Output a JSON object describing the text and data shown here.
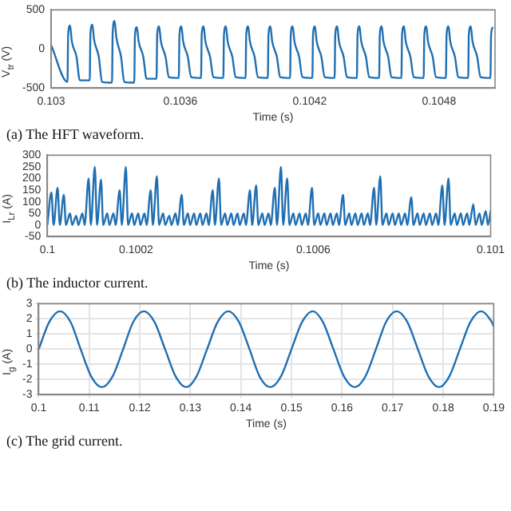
{
  "chart_data": [
    {
      "type": "line",
      "xlabel": "Time (s)",
      "ylabel": "V$_{tr}$ (V)",
      "annotations": [
        "(a) The HFT waveform."
      ],
      "color": "#1f6fb2",
      "grid": false,
      "marker": "none",
      "xlim": [
        0.103,
        0.10506
      ],
      "xticks": [
        0.103,
        0.1036,
        0.1042,
        0.1048
      ],
      "ylim": [
        -500,
        500
      ],
      "yticks": [
        -500,
        0,
        500
      ],
      "x": [
        0.103,
        0.103076,
        0.103079,
        0.103088,
        0.103096,
        0.103118,
        0.103133,
        0.1031793,
        0.1031823,
        0.1031913,
        0.1031993,
        0.1032213,
        0.1032363,
        0.1032826,
        0.1032856,
        0.1032946,
        0.1033026,
        0.1033246,
        0.1033396,
        0.1033859,
        0.1033889,
        0.1033979,
        0.1034059,
        0.1034279,
        0.1034429,
        0.1034892,
        0.1034922,
        0.1035012,
        0.1035092,
        0.1035312,
        0.1035462,
        0.1035925,
        0.1035955,
        0.1036045,
        0.1036125,
        0.1036345,
        0.1036495,
        0.1036958,
        0.1036988,
        0.1037078,
        0.1037158,
        0.1037378,
        0.1037528,
        0.1037991,
        0.1038021,
        0.1038111,
        0.1038191,
        0.1038411,
        0.1038561,
        0.1039024,
        0.1039054,
        0.1039144,
        0.1039224,
        0.1039444,
        0.1039594,
        0.1040057,
        0.1040087,
        0.1040177,
        0.1040257,
        0.1040477,
        0.1040627,
        0.104109,
        0.104112,
        0.104121,
        0.104129,
        0.104151,
        0.104166,
        0.1042123,
        0.1042153,
        0.1042243,
        0.1042323,
        0.1042543,
        0.1042693,
        0.1043156,
        0.1043186,
        0.1043276,
        0.1043356,
        0.1043576,
        0.1043726,
        0.1044189,
        0.1044219,
        0.1044309,
        0.1044389,
        0.1044609,
        0.1044759,
        0.1045222,
        0.1045252,
        0.1045342,
        0.1045422,
        0.1045642,
        0.1045792,
        0.1046255,
        0.1046285,
        0.1046375,
        0.1046455,
        0.1046675,
        0.1046825,
        0.1047288,
        0.1047318,
        0.1047408,
        0.1047488,
        0.1047708,
        0.1047858,
        0.1048321,
        0.1048351,
        0.1048441,
        0.1048521,
        0.1048741,
        0.1048891,
        0.1049354,
        0.1049384,
        0.1049474,
        0.1049554,
        0.1049774,
        0.1049924,
        0.1050387,
        0.1050417,
        0.10505
      ],
      "values": [
        50,
        -420,
        180,
        300,
        100,
        -100,
        -400,
        -400,
        190,
        310,
        120,
        -100,
        -420,
        -430,
        200,
        360,
        150,
        -100,
        -420,
        -430,
        170,
        280,
        100,
        -100,
        -380,
        -380,
        180,
        290,
        100,
        -100,
        -360,
        -370,
        180,
        290,
        100,
        -100,
        -360,
        -370,
        180,
        290,
        100,
        -100,
        -360,
        -370,
        180,
        290,
        100,
        -100,
        -360,
        -370,
        180,
        290,
        100,
        -100,
        -360,
        -370,
        180,
        290,
        100,
        -100,
        -360,
        -370,
        180,
        290,
        100,
        -100,
        -360,
        -370,
        180,
        290,
        100,
        -100,
        -360,
        -370,
        180,
        290,
        100,
        -100,
        -360,
        -370,
        180,
        290,
        100,
        -100,
        -360,
        -370,
        180,
        290,
        100,
        -100,
        -360,
        -370,
        180,
        290,
        100,
        -100,
        -360,
        -370,
        180,
        290,
        100,
        -100,
        -360,
        -370,
        180,
        290,
        100,
        -100,
        -360,
        -370,
        180,
        290,
        100,
        -100,
        -360,
        -370,
        180,
        280
      ]
    },
    {
      "type": "line",
      "xlabel": "Time (s)",
      "ylabel": "I$_{Lr}$ (A)",
      "annotations": [
        "(b) The inductor current."
      ],
      "color": "#1f6fb2",
      "grid": false,
      "marker": "none",
      "xlim": [
        0.1,
        0.101
      ],
      "xticks": [
        0.1,
        0.1002,
        0.1006,
        0.101
      ],
      "ylim": [
        -50,
        300
      ],
      "yticks": [
        -50,
        0,
        50,
        100,
        150,
        200,
        250,
        300
      ],
      "x": [
        0.1,
        0.100009,
        0.100014,
        0.100023,
        0.100028,
        0.100037,
        0.100042,
        0.100051,
        0.100056,
        0.100065,
        0.10007,
        0.100079,
        0.100084,
        0.100093,
        0.100098,
        0.100107,
        0.100112,
        0.100121,
        0.100126,
        0.100135,
        0.10014,
        0.100149,
        0.100154,
        0.100163,
        0.100168,
        0.100177,
        0.100182,
        0.100191,
        0.100196,
        0.100205,
        0.10021,
        0.100219,
        0.100224,
        0.100233,
        0.100238,
        0.100247,
        0.100252,
        0.100261,
        0.100266,
        0.100275,
        0.10028,
        0.100289,
        0.100294,
        0.100303,
        0.100308,
        0.100317,
        0.100322,
        0.100331,
        0.100336,
        0.100345,
        0.10035,
        0.100359,
        0.100364,
        0.100373,
        0.100378,
        0.100387,
        0.100392,
        0.100401,
        0.100406,
        0.100415,
        0.10042,
        0.100429,
        0.100434,
        0.100443,
        0.100448,
        0.100457,
        0.100462,
        0.100471,
        0.100476,
        0.100485,
        0.10049,
        0.100499,
        0.100504,
        0.100513,
        0.100518,
        0.100527,
        0.100532,
        0.100541,
        0.100546,
        0.100555,
        0.10056,
        0.100569,
        0.100574,
        0.100583,
        0.100588,
        0.100597,
        0.100602,
        0.100611,
        0.100616,
        0.100625,
        0.10063,
        0.100639,
        0.100644,
        0.100653,
        0.100658,
        0.100667,
        0.100672,
        0.100681,
        0.100686,
        0.100695,
        0.1007,
        0.100709,
        0.100714,
        0.100723,
        0.100728,
        0.100737,
        0.100742,
        0.100751,
        0.100756,
        0.100765,
        0.10077,
        0.100779,
        0.100784,
        0.100793,
        0.100798,
        0.100807,
        0.100812,
        0.100821,
        0.100826,
        0.100835,
        0.10084,
        0.100849,
        0.100854,
        0.100863,
        0.100868,
        0.100877,
        0.100882,
        0.100891,
        0.100896,
        0.100905,
        0.10091,
        0.100919,
        0.100924,
        0.100933,
        0.100938,
        0.100947,
        0.100952,
        0.100961,
        0.100966,
        0.100975,
        0.10098,
        0.100989,
        0.100994,
        0.101
      ],
      "values": [
        0,
        140,
        0,
        160,
        0,
        130,
        0,
        50,
        0,
        40,
        0,
        50,
        0,
        200,
        0,
        250,
        0,
        195,
        0,
        50,
        0,
        50,
        0,
        150,
        0,
        250,
        0,
        50,
        0,
        50,
        0,
        50,
        0,
        150,
        0,
        210,
        0,
        50,
        0,
        40,
        0,
        50,
        0,
        130,
        0,
        50,
        0,
        50,
        0,
        50,
        0,
        50,
        0,
        150,
        0,
        200,
        0,
        50,
        0,
        50,
        0,
        50,
        0,
        50,
        0,
        150,
        0,
        170,
        0,
        50,
        0,
        50,
        0,
        160,
        0,
        250,
        0,
        200,
        0,
        50,
        0,
        50,
        0,
        50,
        0,
        160,
        0,
        50,
        0,
        50,
        0,
        50,
        0,
        50,
        0,
        130,
        0,
        50,
        0,
        50,
        0,
        50,
        0,
        50,
        0,
        160,
        0,
        210,
        0,
        50,
        0,
        50,
        0,
        50,
        0,
        50,
        0,
        120,
        0,
        50,
        0,
        50,
        0,
        50,
        0,
        50,
        0,
        170,
        0,
        200,
        0,
        50,
        0,
        50,
        0,
        50,
        0,
        90,
        0,
        50,
        0,
        60,
        0,
        60
      ]
    },
    {
      "type": "line",
      "xlabel": "Time (s)",
      "ylabel": "I$_{g}$ (A)",
      "annotations": [
        "(c) The grid current."
      ],
      "color": "#1f6fb2",
      "grid": true,
      "marker": "none",
      "xlim": [
        0.1,
        0.19
      ],
      "xticks": [
        0.1,
        0.11,
        0.12,
        0.13,
        0.14,
        0.15,
        0.16,
        0.17,
        0.18,
        0.19
      ],
      "ylim": [
        -3,
        3
      ],
      "yticks": [
        -3,
        -2,
        -1,
        0,
        1,
        2,
        3
      ],
      "x": [
        0.1,
        0.1021,
        0.1042,
        0.1063,
        0.1083,
        0.1104,
        0.1125,
        0.1146,
        0.1167,
        0.1187,
        0.1208,
        0.1229,
        0.125,
        0.1271,
        0.1292,
        0.1312,
        0.1333,
        0.1354,
        0.1375,
        0.1396,
        0.1417,
        0.1437,
        0.1458,
        0.1479,
        0.15,
        0.1521,
        0.1542,
        0.1562,
        0.1583,
        0.1604,
        0.1625,
        0.1646,
        0.1667,
        0.1687,
        0.1708,
        0.1729,
        0.175,
        0.1771,
        0.1792,
        0.1812,
        0.1833,
        0.1854,
        0.1875,
        0.1896,
        0.19
      ],
      "values": [
        0,
        1.8,
        2.5,
        1.8,
        0,
        -1.8,
        -2.5,
        -1.8,
        0,
        1.8,
        2.5,
        1.8,
        0,
        -1.8,
        -2.5,
        -1.8,
        0,
        1.8,
        2.5,
        1.8,
        0,
        -1.8,
        -2.5,
        -1.8,
        0,
        1.8,
        2.5,
        1.8,
        0,
        -1.8,
        -2.5,
        -1.8,
        0,
        1.8,
        2.5,
        1.8,
        0,
        -1.8,
        -2.5,
        -1.8,
        0,
        1.8,
        2.5,
        1.8,
        1.5
      ]
    }
  ]
}
